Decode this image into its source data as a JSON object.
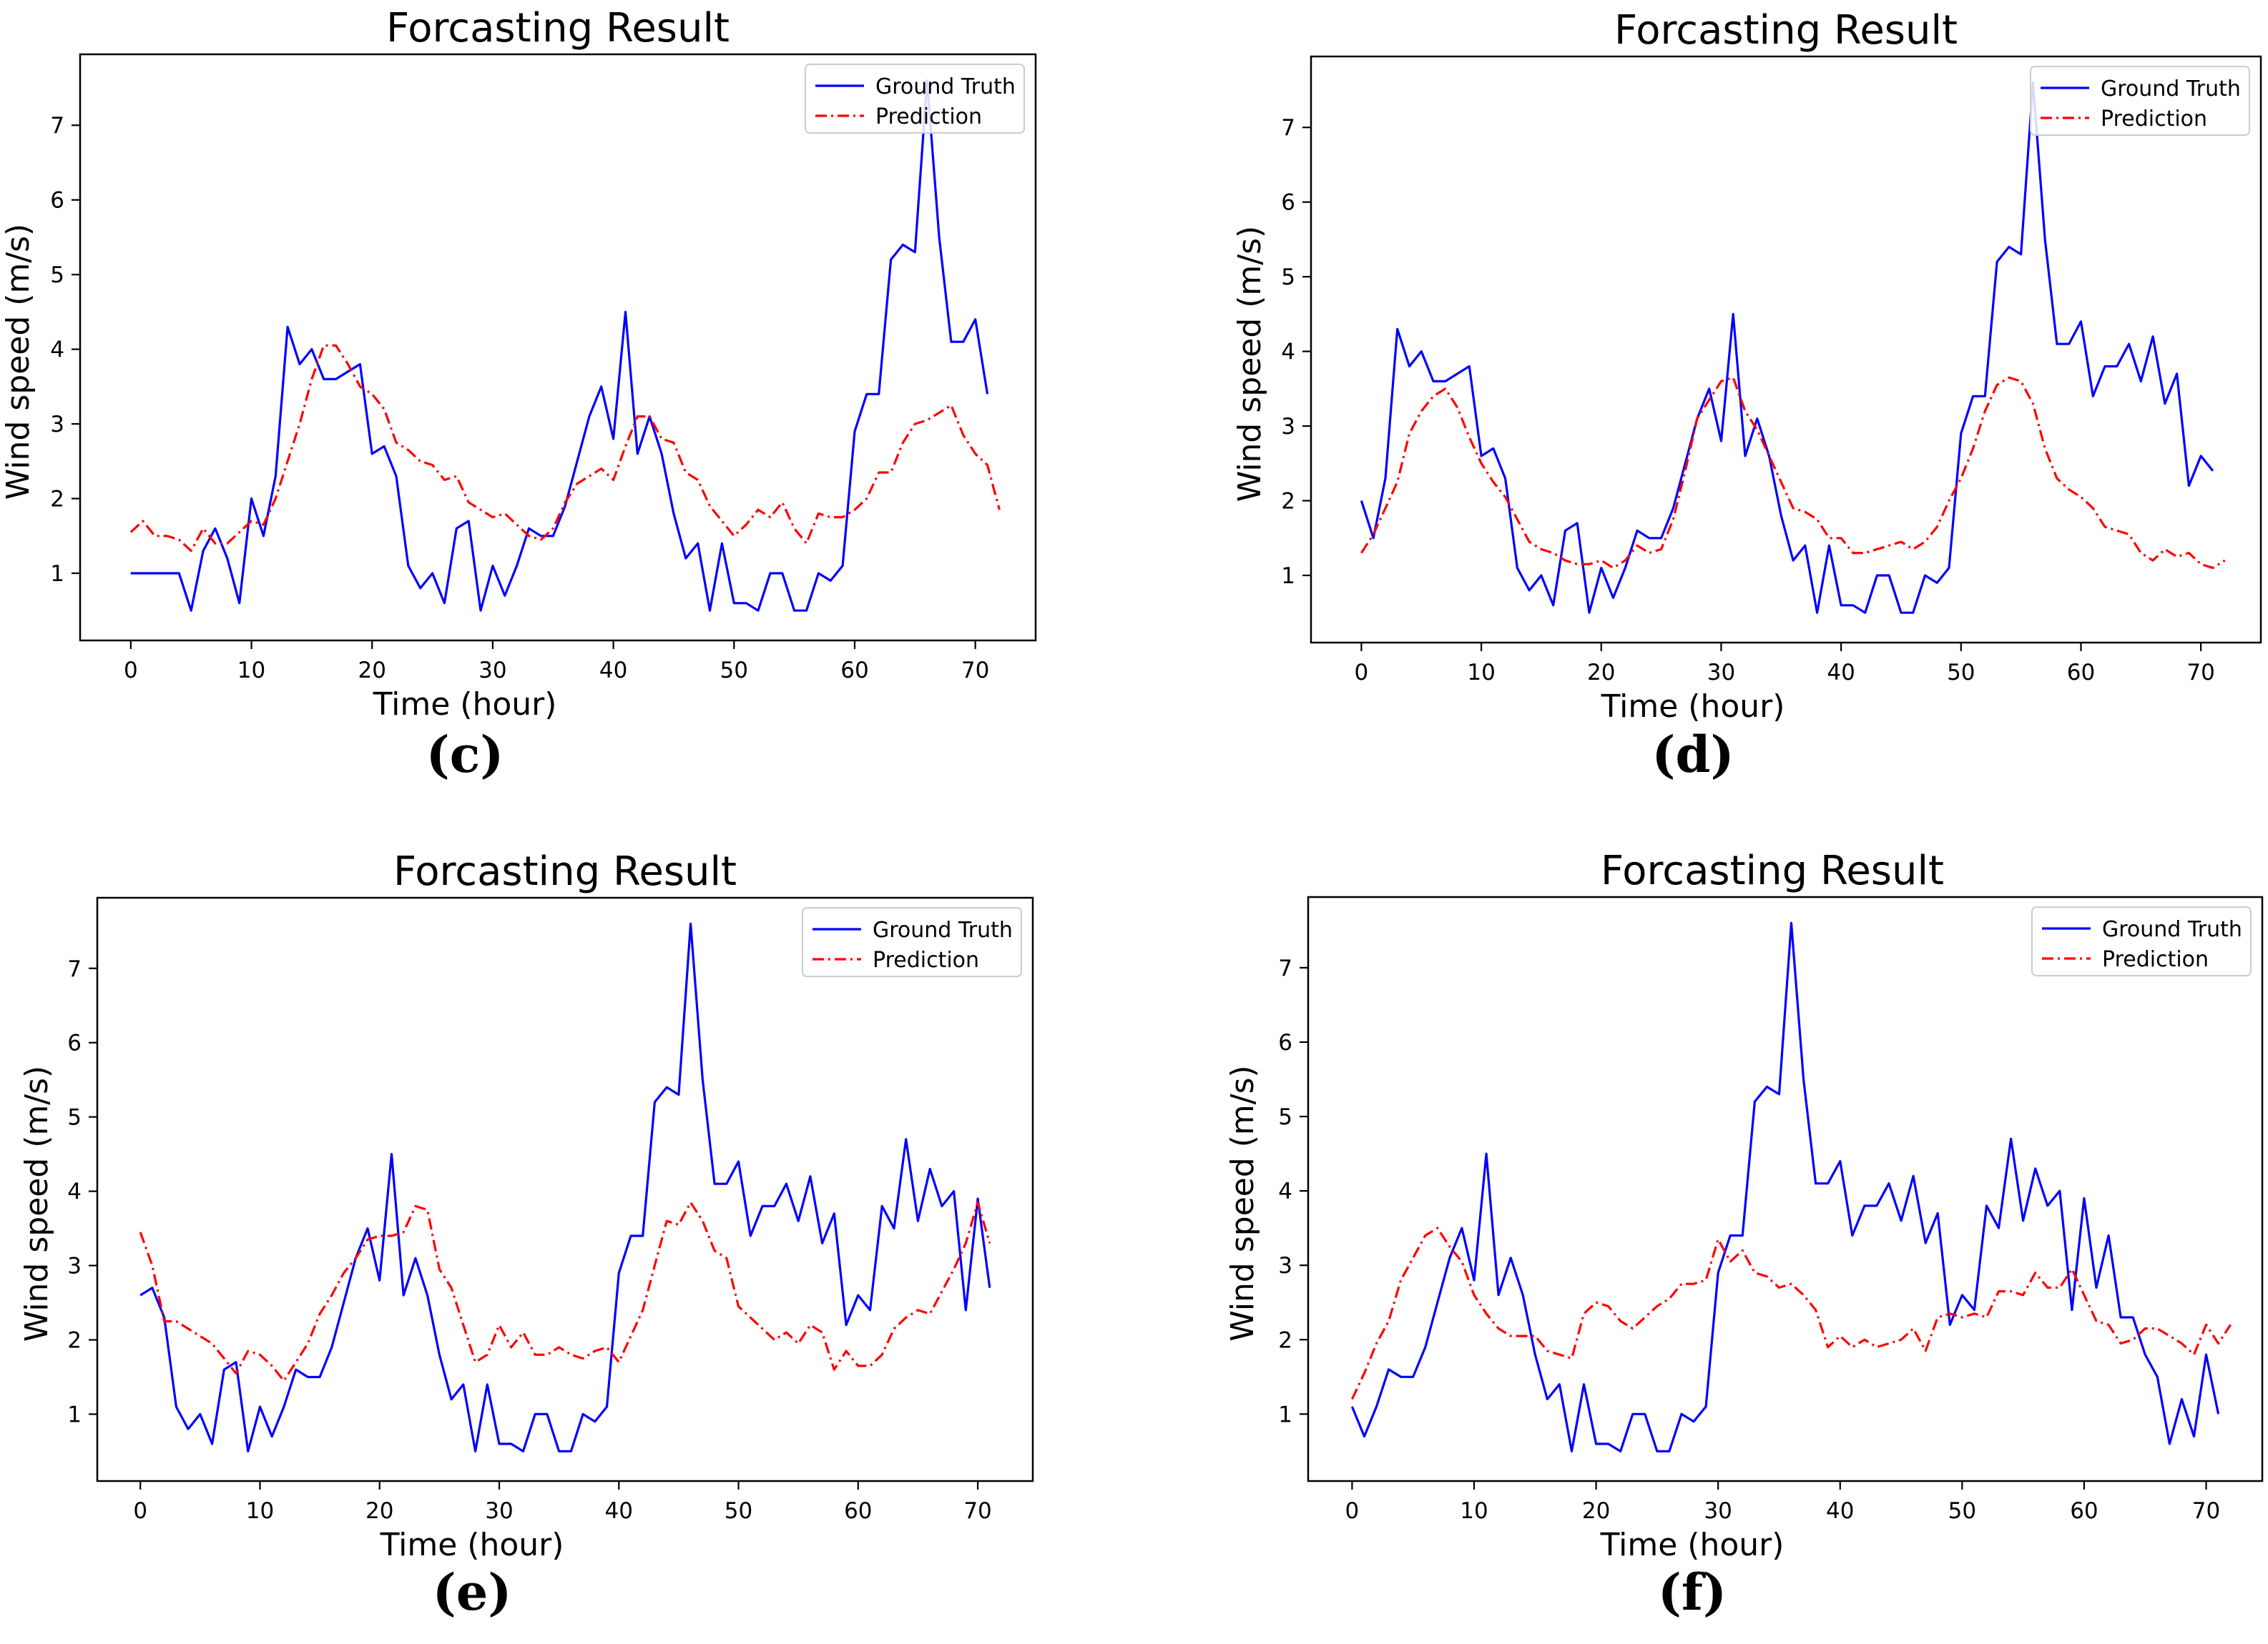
{
  "colors": {
    "truth": "#0000ff",
    "prediction": "#ff0000",
    "axis": "#000000"
  },
  "chart_data": [
    {
      "type": "line",
      "panel_label": "(c)",
      "title": "Forcasting Result",
      "xlabel": "Time (hour)",
      "ylabel": "Wind speed (m/s)",
      "xlim": [
        -4.2,
        75
      ],
      "ylim": [
        0.1,
        7.95
      ],
      "xticks": [
        0,
        10,
        20,
        30,
        40,
        50,
        60,
        70
      ],
      "yticks": [
        1,
        2,
        3,
        4,
        5,
        6,
        7
      ],
      "grid": false,
      "legend_position": "top-right",
      "series": [
        {
          "name": "Ground Truth",
          "style": "solid",
          "values": [
            1.0,
            1.0,
            1.0,
            1.0,
            1.0,
            0.5,
            1.3,
            1.6,
            1.2,
            0.6,
            2.0,
            1.5,
            2.3,
            4.3,
            3.8,
            4.0,
            3.6,
            3.6,
            3.7,
            3.8,
            2.6,
            2.7,
            2.3,
            1.1,
            0.8,
            1.0,
            0.6,
            1.6,
            1.7,
            0.5,
            1.1,
            0.7,
            1.1,
            1.6,
            1.5,
            1.5,
            1.9,
            2.5,
            3.1,
            3.5,
            2.8,
            4.5,
            2.6,
            3.1,
            2.6,
            1.8,
            1.2,
            1.4,
            0.5,
            1.4,
            0.6,
            0.6,
            0.5,
            1.0,
            1.0,
            0.5,
            0.5,
            1.0,
            0.9,
            1.1,
            2.9,
            3.4,
            3.4,
            5.2,
            5.4,
            5.3,
            7.6,
            5.5,
            4.1,
            4.1,
            4.4,
            3.4
          ]
        },
        {
          "name": "Prediction",
          "style": "dashdot",
          "values": [
            1.55,
            1.7,
            1.5,
            1.5,
            1.45,
            1.3,
            1.6,
            1.4,
            1.4,
            1.55,
            1.7,
            1.65,
            2.0,
            2.5,
            3.0,
            3.6,
            4.05,
            4.05,
            3.8,
            3.5,
            3.4,
            3.2,
            2.75,
            2.65,
            2.5,
            2.45,
            2.25,
            2.3,
            1.95,
            1.85,
            1.75,
            1.8,
            1.65,
            1.5,
            1.45,
            1.6,
            1.95,
            2.2,
            2.3,
            2.4,
            2.25,
            2.7,
            3.1,
            3.1,
            2.8,
            2.75,
            2.35,
            2.25,
            1.9,
            1.7,
            1.5,
            1.65,
            1.85,
            1.75,
            1.95,
            1.6,
            1.4,
            1.8,
            1.75,
            1.75,
            1.85,
            2.0,
            2.35,
            2.35,
            2.75,
            3.0,
            3.05,
            3.15,
            3.25,
            2.85,
            2.6,
            2.45,
            1.85
          ]
        }
      ]
    },
    {
      "type": "line",
      "panel_label": "(d)",
      "title": "Forcasting Result",
      "xlabel": "Time (hour)",
      "ylabel": "Wind speed (m/s)",
      "xlim": [
        -4.2,
        75
      ],
      "ylim": [
        0.1,
        7.95
      ],
      "xticks": [
        0,
        10,
        20,
        30,
        40,
        50,
        60,
        70
      ],
      "yticks": [
        1,
        2,
        3,
        4,
        5,
        6,
        7
      ],
      "grid": false,
      "legend_position": "top-right",
      "series": [
        {
          "name": "Ground Truth",
          "style": "solid",
          "values": [
            2.0,
            1.5,
            2.3,
            4.3,
            3.8,
            4.0,
            3.6,
            3.6,
            3.7,
            3.8,
            2.6,
            2.7,
            2.3,
            1.1,
            0.8,
            1.0,
            0.6,
            1.6,
            1.7,
            0.5,
            1.1,
            0.7,
            1.1,
            1.6,
            1.5,
            1.5,
            1.9,
            2.5,
            3.1,
            3.5,
            2.8,
            4.5,
            2.6,
            3.1,
            2.6,
            1.8,
            1.2,
            1.4,
            0.5,
            1.4,
            0.6,
            0.6,
            0.5,
            1.0,
            1.0,
            0.5,
            0.5,
            1.0,
            0.9,
            1.1,
            2.9,
            3.4,
            3.4,
            5.2,
            5.4,
            5.3,
            7.6,
            5.5,
            4.1,
            4.1,
            4.4,
            3.4,
            3.8,
            3.8,
            4.1,
            3.6,
            4.2,
            3.3,
            3.7,
            2.2,
            2.6,
            2.4
          ]
        },
        {
          "name": "Prediction",
          "style": "dashdot",
          "values": [
            1.3,
            1.55,
            1.9,
            2.25,
            2.9,
            3.2,
            3.4,
            3.5,
            3.25,
            2.85,
            2.5,
            2.25,
            2.05,
            1.75,
            1.45,
            1.35,
            1.3,
            1.2,
            1.15,
            1.15,
            1.2,
            1.1,
            1.2,
            1.4,
            1.3,
            1.35,
            1.75,
            2.4,
            3.1,
            3.35,
            3.6,
            3.65,
            3.2,
            2.95,
            2.6,
            2.25,
            1.9,
            1.85,
            1.75,
            1.5,
            1.5,
            1.3,
            1.3,
            1.35,
            1.4,
            1.45,
            1.35,
            1.45,
            1.65,
            2.0,
            2.3,
            2.7,
            3.2,
            3.55,
            3.65,
            3.6,
            3.3,
            2.7,
            2.3,
            2.15,
            2.05,
            1.9,
            1.65,
            1.6,
            1.55,
            1.3,
            1.2,
            1.35,
            1.25,
            1.3,
            1.15,
            1.1,
            1.2
          ]
        }
      ]
    },
    {
      "type": "line",
      "panel_label": "(e)",
      "title": "Forcasting Result",
      "xlabel": "Time (hour)",
      "ylabel": "Wind speed (m/s)",
      "xlim": [
        -3.6,
        74.6
      ],
      "ylim": [
        0.1,
        7.95
      ],
      "xticks": [
        0,
        10,
        20,
        30,
        40,
        50,
        60,
        70
      ],
      "yticks": [
        1,
        2,
        3,
        4,
        5,
        6,
        7
      ],
      "grid": false,
      "legend_position": "top-right",
      "series": [
        {
          "name": "Ground Truth",
          "style": "solid",
          "values": [
            2.6,
            2.7,
            2.3,
            1.1,
            0.8,
            1.0,
            0.6,
            1.6,
            1.7,
            0.5,
            1.1,
            0.7,
            1.1,
            1.6,
            1.5,
            1.5,
            1.9,
            2.5,
            3.1,
            3.5,
            2.8,
            4.5,
            2.6,
            3.1,
            2.6,
            1.8,
            1.2,
            1.4,
            0.5,
            1.4,
            0.6,
            0.6,
            0.5,
            1.0,
            1.0,
            0.5,
            0.5,
            1.0,
            0.9,
            1.1,
            2.9,
            3.4,
            3.4,
            5.2,
            5.4,
            5.3,
            7.6,
            5.5,
            4.1,
            4.1,
            4.4,
            3.4,
            3.8,
            3.8,
            4.1,
            3.6,
            4.2,
            3.3,
            3.7,
            2.2,
            2.6,
            2.4,
            3.8,
            3.5,
            4.7,
            3.6,
            4.3,
            3.8,
            4.0,
            2.4,
            3.9,
            2.7
          ]
        },
        {
          "name": "Prediction",
          "style": "dashdot",
          "values": [
            3.45,
            3.0,
            2.25,
            2.25,
            2.15,
            2.05,
            1.95,
            1.75,
            1.55,
            1.85,
            1.8,
            1.65,
            1.45,
            1.7,
            1.95,
            2.35,
            2.6,
            2.9,
            3.1,
            3.35,
            3.4,
            3.4,
            3.45,
            3.8,
            3.75,
            2.95,
            2.7,
            2.2,
            1.7,
            1.8,
            2.2,
            1.9,
            2.1,
            1.8,
            1.8,
            1.9,
            1.8,
            1.75,
            1.85,
            1.9,
            1.7,
            2.05,
            2.4,
            3.0,
            3.6,
            3.55,
            3.85,
            3.6,
            3.2,
            3.1,
            2.45,
            2.3,
            2.15,
            2.0,
            2.1,
            1.95,
            2.2,
            2.1,
            1.6,
            1.85,
            1.65,
            1.65,
            1.8,
            2.15,
            2.3,
            2.4,
            2.35,
            2.65,
            2.95,
            3.3,
            3.85,
            3.3
          ]
        }
      ]
    },
    {
      "type": "line",
      "panel_label": "(f)",
      "title": "Forcasting Result",
      "xlabel": "Time (hour)",
      "ylabel": "Wind speed (m/s)",
      "xlim": [
        -3.6,
        74.6
      ],
      "ylim": [
        0.1,
        7.95
      ],
      "xticks": [
        0,
        10,
        20,
        30,
        40,
        50,
        60,
        70
      ],
      "yticks": [
        1,
        2,
        3,
        4,
        5,
        6,
        7
      ],
      "grid": false,
      "legend_position": "top-right",
      "series": [
        {
          "name": "Ground Truth",
          "style": "solid",
          "values": [
            1.1,
            0.7,
            1.1,
            1.6,
            1.5,
            1.5,
            1.9,
            2.5,
            3.1,
            3.5,
            2.8,
            4.5,
            2.6,
            3.1,
            2.6,
            1.8,
            1.2,
            1.4,
            0.5,
            1.4,
            0.6,
            0.6,
            0.5,
            1.0,
            1.0,
            0.5,
            0.5,
            1.0,
            0.9,
            1.1,
            2.9,
            3.4,
            3.4,
            5.2,
            5.4,
            5.3,
            7.6,
            5.5,
            4.1,
            4.1,
            4.4,
            3.4,
            3.8,
            3.8,
            4.1,
            3.6,
            4.2,
            3.3,
            3.7,
            2.2,
            2.6,
            2.4,
            3.8,
            3.5,
            4.7,
            3.6,
            4.3,
            3.8,
            4.0,
            2.4,
            3.9,
            2.7,
            3.4,
            2.3,
            2.3,
            1.8,
            1.5,
            0.6,
            1.2,
            0.7,
            1.8,
            1.0
          ]
        },
        {
          "name": "Prediction",
          "style": "dashdot",
          "values": [
            1.2,
            1.55,
            1.95,
            2.25,
            2.8,
            3.1,
            3.4,
            3.5,
            3.25,
            3.05,
            2.6,
            2.35,
            2.15,
            2.05,
            2.05,
            2.05,
            1.85,
            1.8,
            1.75,
            2.35,
            2.5,
            2.45,
            2.25,
            2.15,
            2.3,
            2.45,
            2.55,
            2.75,
            2.75,
            2.8,
            3.35,
            3.05,
            3.2,
            2.9,
            2.85,
            2.7,
            2.75,
            2.6,
            2.4,
            1.9,
            2.05,
            1.9,
            2.0,
            1.9,
            1.95,
            2.0,
            2.15,
            1.85,
            2.3,
            2.35,
            2.3,
            2.35,
            2.3,
            2.65,
            2.65,
            2.6,
            2.9,
            2.7,
            2.7,
            2.95,
            2.6,
            2.25,
            2.2,
            1.95,
            2.0,
            2.15,
            2.15,
            2.05,
            1.95,
            1.8,
            2.2,
            1.95,
            2.2
          ]
        }
      ]
    }
  ]
}
